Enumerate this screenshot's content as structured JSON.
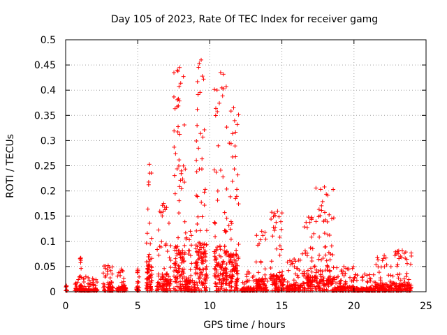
{
  "chart_data": {
    "type": "scatter",
    "title": "Day 105 of 2023, Rate Of TEC Index for receiver gamg",
    "xlabel": "GPS time / hours",
    "ylabel": "ROTI / TECUs",
    "xlim": [
      0,
      25
    ],
    "ylim": [
      0,
      0.5
    ],
    "xticks": [
      0,
      5,
      10,
      15,
      20,
      25
    ],
    "yticks": [
      0,
      0.05,
      0.1,
      0.15,
      0.2,
      0.25,
      0.3,
      0.35,
      0.4,
      0.45,
      0.5
    ],
    "grid": true,
    "marker": "+",
    "series_color": "#ff0000",
    "clusters": [
      {
        "x_start": 0.0,
        "x_end": 0.1,
        "y_max": 0.012,
        "label": "start marker"
      },
      {
        "x_start": 0.6,
        "x_end": 2.2,
        "y_max": 0.03
      },
      {
        "x_start": 1.0,
        "x_end": 1.1,
        "y_max": 0.067
      },
      {
        "x_start": 2.6,
        "x_end": 3.3,
        "y_max": 0.052
      },
      {
        "x_start": 3.5,
        "x_end": 4.2,
        "y_max": 0.045
      },
      {
        "x_start": 4.9,
        "x_end": 5.1,
        "y_max": 0.045
      },
      {
        "x_start": 5.6,
        "x_end": 6.0,
        "y_max": 0.253
      },
      {
        "x_start": 6.3,
        "x_end": 7.3,
        "y_max": 0.175
      },
      {
        "x_start": 7.5,
        "x_end": 8.3,
        "y_max": 0.445
      },
      {
        "x_start": 8.3,
        "x_end": 9.0,
        "y_max": 0.12
      },
      {
        "x_start": 9.0,
        "x_end": 9.8,
        "y_max": 0.46
      },
      {
        "x_start": 10.3,
        "x_end": 11.2,
        "y_max": 0.435
      },
      {
        "x_start": 11.3,
        "x_end": 12.0,
        "y_max": 0.365
      },
      {
        "x_start": 12.2,
        "x_end": 13.1,
        "y_max": 0.04
      },
      {
        "x_start": 13.2,
        "x_end": 14.0,
        "y_max": 0.12
      },
      {
        "x_start": 14.2,
        "x_end": 15.2,
        "y_max": 0.16
      },
      {
        "x_start": 15.3,
        "x_end": 16.4,
        "y_max": 0.065
      },
      {
        "x_start": 16.4,
        "x_end": 17.3,
        "y_max": 0.148
      },
      {
        "x_start": 17.3,
        "x_end": 18.6,
        "y_max": 0.208
      },
      {
        "x_start": 18.6,
        "x_end": 20.0,
        "y_max": 0.05
      },
      {
        "x_start": 20.0,
        "x_end": 21.5,
        "y_max": 0.035
      },
      {
        "x_start": 21.5,
        "x_end": 22.7,
        "y_max": 0.072
      },
      {
        "x_start": 22.7,
        "x_end": 24.0,
        "y_max": 0.082
      }
    ]
  }
}
